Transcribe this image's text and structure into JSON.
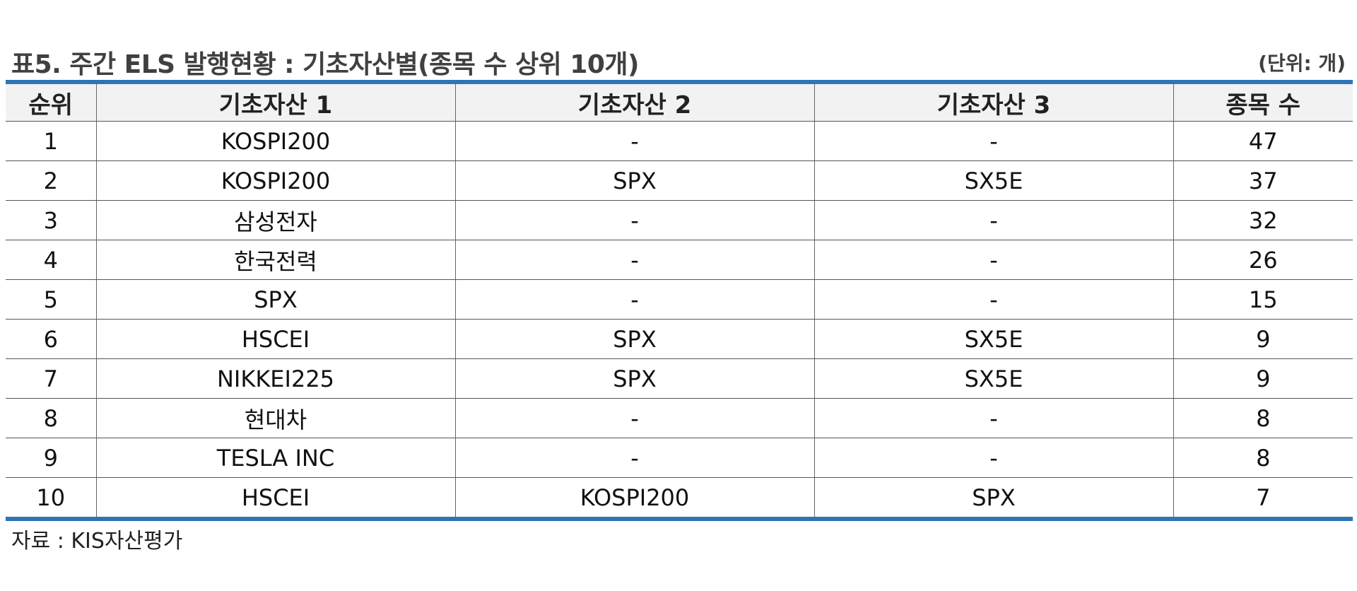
{
  "title": "표5. 주간 ELS 발행현황 : 기초자산별(종목 수 상위 10개)",
  "unit": "(단위: 개)",
  "table": {
    "headers": [
      "순위",
      "기초자산 1",
      "기초자산 2",
      "기초자산 3",
      "종목 수"
    ],
    "rows": [
      [
        "1",
        "KOSPI200",
        "-",
        "-",
        "47"
      ],
      [
        "2",
        "KOSPI200",
        "SPX",
        "SX5E",
        "37"
      ],
      [
        "3",
        "삼성전자",
        "-",
        "-",
        "32"
      ],
      [
        "4",
        "한국전력",
        "-",
        "-",
        "26"
      ],
      [
        "5",
        "SPX",
        "-",
        "-",
        "15"
      ],
      [
        "6",
        "HSCEI",
        "SPX",
        "SX5E",
        "9"
      ],
      [
        "7",
        "NIKKEI225",
        "SPX",
        "SX5E",
        "9"
      ],
      [
        "8",
        "현대차",
        "-",
        "-",
        "8"
      ],
      [
        "9",
        "TESLA INC",
        "-",
        "-",
        "8"
      ],
      [
        "10",
        "HSCEI",
        "KOSPI200",
        "SPX",
        "7"
      ]
    ]
  },
  "source": "자료 : KIS자산평가",
  "colors": {
    "accent_rule": "#2e75b6",
    "header_bg": "#f2f2f2",
    "title_text": "#404040"
  }
}
